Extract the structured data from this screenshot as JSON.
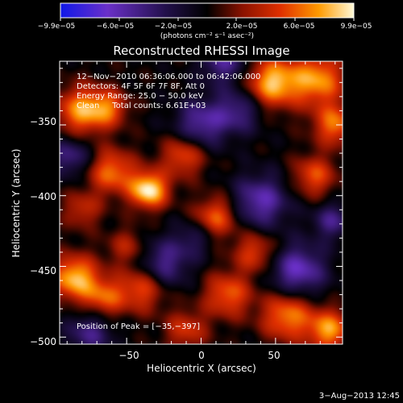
{
  "chart_data": {
    "type": "heatmap",
    "title": "Reconstructed RHESSI Image",
    "xlabel": "Heliocentric X (arcsec)",
    "ylabel": "Heliocentric Y (arcsec)",
    "xlim": [
      -95,
      95
    ],
    "ylim": [
      -505,
      -305
    ],
    "x_ticks": [
      {
        "value": -50,
        "label": "−50"
      },
      {
        "value": 0,
        "label": "0"
      },
      {
        "value": 50,
        "label": "50"
      }
    ],
    "y_ticks": [
      {
        "value": -350,
        "label": "−350"
      },
      {
        "value": -400,
        "label": "−400"
      },
      {
        "value": -450,
        "label": "−450"
      },
      {
        "value": -500,
        "label": "−500"
      }
    ],
    "colorbar": {
      "range": [
        -9.9e-05,
        9.9e-05
      ],
      "tick_labels": [
        "−9.9e−05",
        "−6.0e−05",
        "−2.0e−05",
        "2.0e−05",
        "6.0e−05",
        "9.9e−05"
      ],
      "unit_label": "(photons cm⁻² s⁻¹ asec⁻²)",
      "colors": [
        "#1018e8",
        "#6a30c8",
        "#22104a",
        "#000000",
        "#8a1200",
        "#e03000",
        "#ff9a00",
        "#fff9d8"
      ]
    },
    "annotations": {
      "time_range": "12−Nov−2010 06:36:06.000 to 06:42:06.000",
      "detectors": "Detectors: 4F 5F 6F 7F 8F, Att 0",
      "energy_range": "Energy Range: 25.0 − 50.0 keV",
      "clean": "Clean     Total counts: 6.61E+03",
      "peak": "Position of Peak = [−35,−397]"
    },
    "peak_position": [
      -35,
      -397
    ],
    "blobs": [
      {
        "x": -35,
        "y": -396,
        "amp": 1.0,
        "s": 9
      },
      {
        "x": -60,
        "y": -383,
        "amp": 0.65,
        "s": 11
      },
      {
        "x": -12,
        "y": -372,
        "amp": 0.55,
        "s": 10
      },
      {
        "x": -80,
        "y": -340,
        "amp": 0.75,
        "s": 12
      },
      {
        "x": -62,
        "y": -338,
        "amp": 0.5,
        "s": 9
      },
      {
        "x": 48,
        "y": -320,
        "amp": 0.85,
        "s": 12
      },
      {
        "x": 78,
        "y": -318,
        "amp": 0.75,
        "s": 13
      },
      {
        "x": 90,
        "y": -350,
        "amp": 0.65,
        "s": 10
      },
      {
        "x": 76,
        "y": -386,
        "amp": 0.55,
        "s": 10
      },
      {
        "x": 10,
        "y": -415,
        "amp": 0.6,
        "s": 10
      },
      {
        "x": 36,
        "y": -440,
        "amp": 0.5,
        "s": 10
      },
      {
        "x": 18,
        "y": -470,
        "amp": 0.6,
        "s": 11
      },
      {
        "x": -40,
        "y": -466,
        "amp": 0.55,
        "s": 11
      },
      {
        "x": -85,
        "y": -458,
        "amp": 0.85,
        "s": 11
      },
      {
        "x": -65,
        "y": -472,
        "amp": 0.55,
        "s": 10
      },
      {
        "x": 58,
        "y": -485,
        "amp": 0.7,
        "s": 12
      },
      {
        "x": 86,
        "y": -495,
        "amp": 0.75,
        "s": 10
      },
      {
        "x": -10,
        "y": -495,
        "amp": 0.45,
        "s": 10
      },
      {
        "x": -80,
        "y": -410,
        "amp": 0.4,
        "s": 9
      },
      {
        "x": -50,
        "y": -436,
        "amp": 0.35,
        "s": 9
      },
      {
        "x": 40,
        "y": -404,
        "amp": -0.6,
        "s": 13
      },
      {
        "x": 0,
        "y": -349,
        "amp": -0.55,
        "s": 12
      },
      {
        "x": 25,
        "y": -340,
        "amp": -0.45,
        "s": 11
      },
      {
        "x": 65,
        "y": -453,
        "amp": -0.65,
        "s": 13
      },
      {
        "x": -25,
        "y": -448,
        "amp": -0.5,
        "s": 12
      },
      {
        "x": -75,
        "y": -497,
        "amp": -0.45,
        "s": 11
      },
      {
        "x": 15,
        "y": -305,
        "amp": -0.5,
        "s": 11
      },
      {
        "x": -88,
        "y": -372,
        "amp": -0.45,
        "s": 10
      },
      {
        "x": 88,
        "y": -418,
        "amp": -0.45,
        "s": 9
      },
      {
        "x": -5,
        "y": -430,
        "amp": -0.3,
        "s": 9
      }
    ]
  },
  "footer": {
    "date": "3−Aug−2013 12:45"
  }
}
